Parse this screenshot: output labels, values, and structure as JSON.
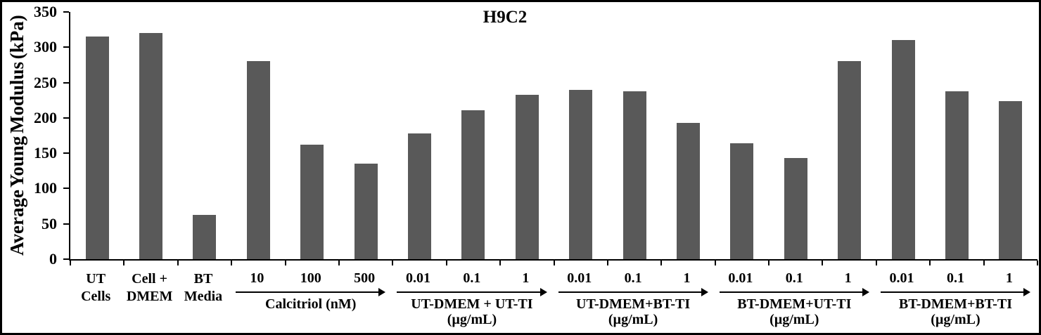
{
  "frame": {
    "background": "#ffffff",
    "border_color": "#000000"
  },
  "chart_data": {
    "type": "bar",
    "title": "H9C2",
    "ylabel": "Average Young Modulus (kPa)",
    "xlabel": "",
    "ylim": [
      0,
      350
    ],
    "yticks": [
      0,
      50,
      100,
      150,
      200,
      250,
      300,
      350
    ],
    "grid": false,
    "legend": false,
    "bar_color": "#595959",
    "axis_color": "#000000",
    "groups": [
      {
        "name": "UT Cells",
        "name_lines": [
          "UT",
          "Cells"
        ],
        "has_arrow": false,
        "bars": [
          {
            "label": "",
            "value": 315
          }
        ]
      },
      {
        "name": "Cell + DMEM",
        "name_lines": [
          "Cell +",
          "DMEM"
        ],
        "has_arrow": false,
        "bars": [
          {
            "label": "",
            "value": 320
          }
        ]
      },
      {
        "name": "BT Media",
        "name_lines": [
          "BT",
          "Media"
        ],
        "has_arrow": false,
        "bars": [
          {
            "label": "",
            "value": 63
          }
        ]
      },
      {
        "name": "Calcitriol (nM)",
        "name_lines": [
          "Calcitriol (nM)"
        ],
        "has_arrow": true,
        "bars": [
          {
            "label": "10",
            "value": 280
          },
          {
            "label": "100",
            "value": 162
          },
          {
            "label": "500",
            "value": 135
          }
        ]
      },
      {
        "name": "UT-DMEM + UT-TI (µg/mL)",
        "name_lines": [
          "UT-DMEM + UT-TI",
          "(µg/mL)"
        ],
        "has_arrow": true,
        "bars": [
          {
            "label": "0.01",
            "value": 178
          },
          {
            "label": "0.1",
            "value": 211
          },
          {
            "label": "1",
            "value": 233
          }
        ]
      },
      {
        "name": "UT-DMEM+BT-TI (µg/mL)",
        "name_lines": [
          "UT-DMEM+BT-TI",
          "(µg/mL)"
        ],
        "has_arrow": true,
        "bars": [
          {
            "label": "0.01",
            "value": 240
          },
          {
            "label": "0.1",
            "value": 238
          },
          {
            "label": "1",
            "value": 193
          }
        ]
      },
      {
        "name": "BT-DMEM+UT-TI (µg/mL)",
        "name_lines": [
          "BT-DMEM+UT-TI",
          "(µg/mL)"
        ],
        "has_arrow": true,
        "bars": [
          {
            "label": "0.01",
            "value": 164
          },
          {
            "label": "0.1",
            "value": 143
          },
          {
            "label": "1",
            "value": 280
          }
        ]
      },
      {
        "name": "BT-DMEM+BT-TI (µg/mL)",
        "name_lines": [
          "BT-DMEM+BT-TI",
          "(µg/mL)"
        ],
        "has_arrow": true,
        "bars": [
          {
            "label": "0.01",
            "value": 310
          },
          {
            "label": "0.1",
            "value": 238
          },
          {
            "label": "1",
            "value": 224
          }
        ]
      }
    ]
  }
}
